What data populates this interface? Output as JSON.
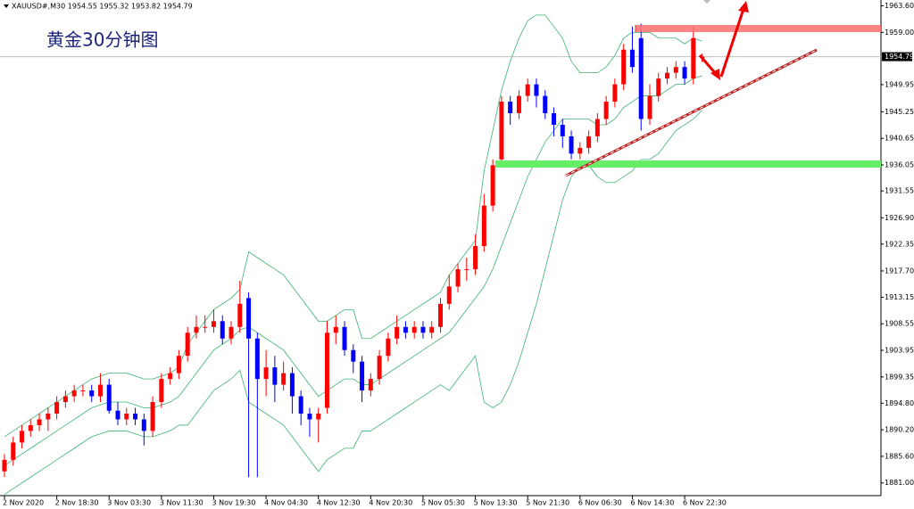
{
  "chart_data": {
    "type": "candlestick",
    "header": "XAUUSD#,M30  1954.55 1955.32 1953.82 1954.79",
    "title": "黄金30分钟图",
    "categories": [
      "2 Nov 2020",
      null,
      null,
      null,
      null,
      null,
      "2 Nov 18:30",
      null,
      null,
      null,
      null,
      null,
      "3 Nov 03:30",
      null,
      null,
      null,
      null,
      null,
      "3 Nov 11:30",
      null,
      null,
      null,
      null,
      null,
      "3 Nov 19:30",
      null,
      null,
      null,
      null,
      null,
      "4 Nov 04:30",
      null,
      null,
      null,
      null,
      null,
      "4 Nov 12:30",
      null,
      null,
      null,
      null,
      null,
      "4 Nov 20:30",
      null,
      null,
      null,
      null,
      null,
      "5 Nov 05:30",
      null,
      null,
      null,
      null,
      null,
      "5 Nov 13:30",
      null,
      null,
      null,
      null,
      null,
      "5 Nov 21:30",
      null,
      null,
      null,
      null,
      null,
      "6 Nov 06:30",
      null,
      null,
      null,
      null,
      null,
      "6 Nov 14:30",
      null,
      null,
      null,
      null,
      null,
      "6 Nov 22:30",
      null,
      null
    ],
    "open": [
      1883,
      1885,
      1888,
      1890,
      1891,
      1892,
      1893,
      1895,
      1896,
      1897,
      1897,
      1896,
      1898,
      1893.5,
      1892,
      1893,
      1892,
      1890,
      1895,
      1899,
      1900,
      1903,
      1907,
      1908,
      1908,
      1909,
      1906,
      1908,
      1913,
      1906,
      1899,
      1901,
      1898,
      1900,
      1896,
      1893,
      1892,
      1894,
      1907,
      1908,
      1904,
      1902,
      1897,
      1899,
      1903,
      1906,
      1908,
      1907,
      1908,
      1907,
      1908,
      1912,
      1915,
      1918,
      1918,
      1922,
      1929,
      1937,
      1947,
      1945,
      1948,
      1950,
      1948,
      1945,
      1943,
      1941,
      1938,
      1939,
      1941,
      1944,
      1947,
      1950,
      1956,
      1958,
      1944,
      1948,
      1951,
      1952,
      1953,
      1951,
      1954.55
    ],
    "high": [
      1886,
      1889,
      1891,
      1892,
      1893,
      1894,
      1896,
      1897,
      1898,
      1898,
      1898,
      1900,
      1899,
      1895,
      1894,
      1894,
      1893,
      1896,
      1900,
      1901,
      1904,
      1908,
      1910,
      1910,
      1911,
      1910,
      1909,
      1916,
      1914,
      1907,
      1904,
      1903,
      1902,
      1901,
      1897,
      1894,
      1894,
      1909,
      1910,
      1909,
      1905,
      1903,
      1900,
      1904,
      1907,
      1910,
      1909,
      1909,
      1909,
      1909,
      1913,
      1917,
      1919,
      1920,
      1924,
      1931,
      1937,
      1948,
      1948,
      1949,
      1951,
      1951,
      1949,
      1946,
      1944,
      1942,
      1940,
      1942,
      1945,
      1948,
      1951,
      1957,
      1960,
      1960.5,
      1950,
      1952,
      1953,
      1954,
      1954,
      1960,
      1955.32
    ],
    "low": [
      1882,
      1884,
      1887,
      1889,
      1890,
      1890,
      1892,
      1894,
      1895,
      1896,
      1895,
      1895,
      1893,
      1891,
      1891,
      1891,
      1887.5,
      1889,
      1894,
      1898,
      1899,
      1902,
      1906,
      1907,
      1907,
      1905,
      1905,
      1907,
      1882,
      1882,
      1896,
      1895,
      1897,
      1893,
      1891,
      1889,
      1888,
      1893,
      1905,
      1903,
      1900,
      1895,
      1896,
      1898,
      1902,
      1905,
      1906,
      1906,
      1906,
      1906,
      1907,
      1911,
      1914,
      1916,
      1917,
      1921,
      1928,
      1936,
      1943,
      1944,
      1947,
      1946,
      1944,
      1941,
      1939,
      1937,
      1937,
      1938,
      1940,
      1943,
      1946,
      1949,
      1952,
      1942,
      1943,
      1947,
      1950,
      1951,
      1950,
      1950,
      1953.82
    ],
    "close": [
      1885,
      1888,
      1890,
      1891,
      1892,
      1893,
      1895,
      1896,
      1897,
      1897,
      1896,
      1898,
      1893.5,
      1892,
      1893,
      1892,
      1890,
      1895,
      1899,
      1900,
      1903,
      1907,
      1908,
      1908,
      1909,
      1906,
      1908,
      1912,
      1906,
      1899,
      1901,
      1898,
      1900,
      1896,
      1893,
      1892,
      1893,
      1907,
      1908,
      1904,
      1902,
      1897,
      1899,
      1903,
      1906,
      1908,
      1907,
      1908,
      1907,
      1908,
      1912,
      1915,
      1918,
      1918,
      1922,
      1929,
      1936,
      1947,
      1945,
      1948,
      1950,
      1948,
      1945,
      1943,
      1941,
      1938,
      1939,
      1941,
      1944,
      1947,
      1950,
      1956,
      1953,
      1944,
      1948,
      1951,
      1952,
      1953,
      1951,
      1958,
      1954.79
    ],
    "up_color": "#ff0000",
    "down_color": "#0000ff",
    "bands": [
      {
        "color": "#3cb371",
        "values": [
          1889,
          1890,
          1891,
          1892,
          1893,
          1894,
          1895,
          1896,
          1897,
          1898,
          1899,
          1899.5,
          1900,
          1900,
          1900,
          1899.5,
          1899,
          1899,
          1899.5,
          1900,
          1901,
          1905,
          1907,
          1909,
          1911,
          1912,
          1913,
          1914.5,
          1921,
          1920,
          1919,
          1918,
          1917,
          1915,
          1913,
          1911,
          1909,
          1909,
          1910,
          1911,
          1911,
          1906,
          1906,
          1907,
          1908,
          1909,
          1910,
          1911,
          1912,
          1913,
          1914,
          1917,
          1919,
          1921,
          1923,
          1935,
          1942,
          1949,
          1954,
          1958,
          1961,
          1962,
          1962,
          1960,
          1958,
          1954,
          1952,
          1952,
          1952,
          1953,
          1955,
          1958,
          1959,
          1959,
          1959,
          1958,
          1958,
          1958,
          1957,
          1958,
          1957.5
        ]
      },
      {
        "color": "#3cb371",
        "values": [
          1884,
          1885,
          1886,
          1887,
          1888,
          1889,
          1890,
          1891,
          1892,
          1893,
          1894,
          1894.5,
          1895,
          1895,
          1895,
          1894.5,
          1894,
          1894,
          1894.5,
          1895,
          1896,
          1898,
          1900,
          1902,
          1904,
          1905,
          1906,
          1907.5,
          1908,
          1907,
          1906,
          1905,
          1904,
          1902,
          1900,
          1898,
          1896,
          1897,
          1898,
          1899,
          1899,
          1898,
          1898,
          1899,
          1900,
          1901,
          1902,
          1903,
          1904,
          1905,
          1906,
          1907,
          1909,
          1911,
          1913,
          1915,
          1918,
          1922,
          1926,
          1930,
          1934,
          1937,
          1940,
          1942,
          1944,
          1944,
          1944,
          1944,
          1943,
          1943,
          1944,
          1946,
          1947,
          1948,
          1948,
          1948,
          1949,
          1950,
          1950,
          1951,
          1951.5
        ]
      },
      {
        "color": "#3cb371",
        "values": [
          1879,
          1880,
          1881,
          1882,
          1883,
          1884,
          1885,
          1886,
          1887,
          1888,
          1889,
          1889.5,
          1890,
          1890,
          1890,
          1889.5,
          1889,
          1889,
          1889.5,
          1890,
          1891,
          1891,
          1893,
          1895,
          1897,
          1898,
          1899,
          1900.5,
          1895,
          1894,
          1893,
          1892,
          1891,
          1889,
          1887,
          1885,
          1883,
          1885,
          1886,
          1887,
          1887,
          1890,
          1890,
          1891,
          1892,
          1893,
          1894,
          1895,
          1896,
          1897,
          1898,
          1897,
          1899,
          1901,
          1903,
          1895,
          1894,
          1895,
          1898,
          1902,
          1907,
          1912,
          1918,
          1924,
          1930,
          1934,
          1936,
          1936,
          1934,
          1933,
          1933,
          1934,
          1935,
          1937,
          1937,
          1938,
          1940,
          1942,
          1943,
          1944,
          1945.5
        ]
      }
    ],
    "current_price": 1954.79,
    "ylim": [
      1878.8,
      1964.6
    ],
    "yticks": [
      {
        "value": 1963.6,
        "label": "1963.60"
      },
      {
        "value": 1959,
        "label": "1959.00"
      },
      {
        "value": 1949.95,
        "label": "1949.95"
      },
      {
        "value": 1945.25,
        "label": "1945.25"
      },
      {
        "value": 1940.65,
        "label": "1940.65"
      },
      {
        "value": 1936.05,
        "label": "1936.05"
      },
      {
        "value": 1931.55,
        "label": "1931.55"
      },
      {
        "value": 1926.9,
        "label": "1926.90"
      },
      {
        "value": 1922.35,
        "label": "1922.35"
      },
      {
        "value": 1917.7,
        "label": "1917.70"
      },
      {
        "value": 1913.15,
        "label": "1913.15"
      },
      {
        "value": 1908.55,
        "label": "1908.55"
      },
      {
        "value": 1903.95,
        "label": "1903.95"
      },
      {
        "value": 1899.35,
        "label": "1899.35"
      },
      {
        "value": 1894.8,
        "label": "1894.80"
      },
      {
        "value": 1890.2,
        "label": "1890.20"
      },
      {
        "value": 1885.6,
        "label": "1885.60"
      },
      {
        "value": 1881,
        "label": "1881.00"
      }
    ]
  }
}
